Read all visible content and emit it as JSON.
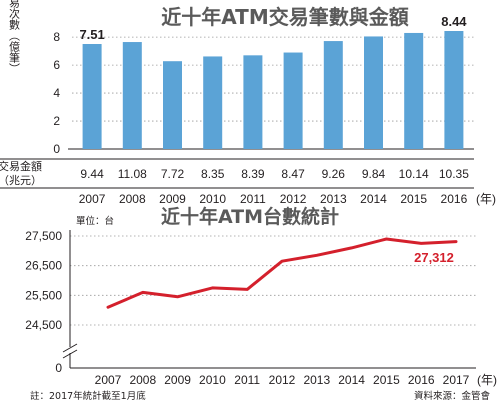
{
  "colors": {
    "bar": "#5ba3d6",
    "line": "#d4202c",
    "grid": "#9a9a9a",
    "axis": "#231f20",
    "title": "#5a5a5a",
    "highlight_label": "#d4202c"
  },
  "chart_data": [
    {
      "type": "bar",
      "title": "近十年ATM交易筆數與金額",
      "ylabel": "交易次數（億筆）",
      "categories": [
        "2007",
        "2008",
        "2009",
        "2010",
        "2011",
        "2012",
        "2013",
        "2014",
        "2015",
        "2016"
      ],
      "x_unit": "(年)",
      "values": [
        7.51,
        7.65,
        6.28,
        6.62,
        6.7,
        6.9,
        7.72,
        8.05,
        8.3,
        8.44
      ],
      "ylim": [
        0,
        8.44
      ],
      "yticks": [
        "0",
        "2",
        "4",
        "6",
        "8"
      ],
      "data_labels": [
        {
          "category": "2007",
          "text": "7.51"
        },
        {
          "category": "2016",
          "text": "8.44"
        }
      ],
      "amount_row": {
        "label": "交易金額",
        "unit": "（兆元）",
        "values": [
          "9.44",
          "11.08",
          "7.72",
          "8.35",
          "8.39",
          "8.47",
          "9.26",
          "9.84",
          "10.14",
          "10.35"
        ]
      },
      "grid": true
    },
    {
      "type": "line",
      "title": "近十年ATM台數統計",
      "unit_label": "單位：台",
      "x": [
        "2007",
        "2008",
        "2009",
        "2010",
        "2011",
        "2012",
        "2013",
        "2014",
        "2015",
        "2016",
        "2017"
      ],
      "x_unit": "(年)",
      "y": [
        25100,
        25600,
        25450,
        25750,
        25700,
        26650,
        26850,
        27100,
        27400,
        27250,
        27312
      ],
      "ylim": [
        24000,
        28000
      ],
      "y_axis_break": true,
      "yticks": [
        "27,500",
        "26,500",
        "25,500",
        "24,500",
        "0"
      ],
      "end_label": "27,312",
      "grid": true
    }
  ],
  "footnote": "註：2017年統計截至1月底",
  "source": "資料來源：金管會"
}
